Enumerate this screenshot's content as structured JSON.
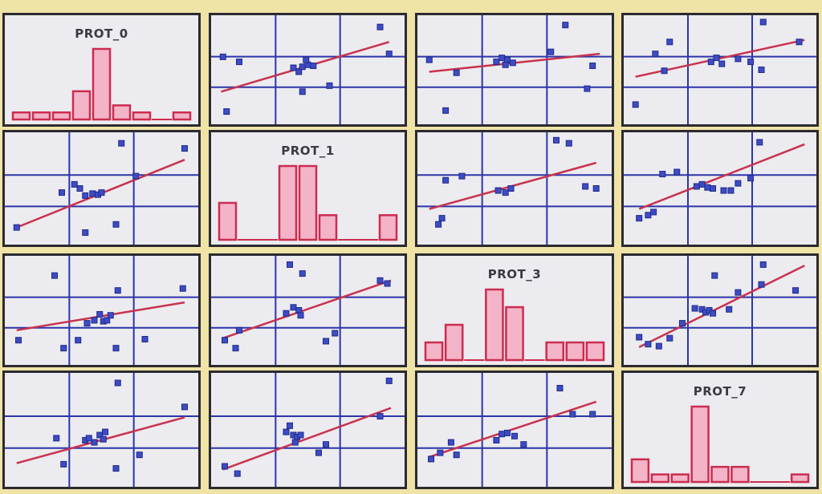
{
  "colors": {
    "background": "#efe3a6",
    "panel": "#ecebef",
    "border": "#2a2a30",
    "grid": "#2b35a8",
    "point": "#3d4cc4",
    "fit_line": "#c8324e",
    "bar_fill": "#f4b4c8",
    "bar_edge": "#cc2c50"
  },
  "chart_data": {
    "type": "scatter-matrix",
    "variables": [
      "PROT_0",
      "PROT_1",
      "PROT_3",
      "PROT_7"
    ],
    "diagonal_type": "histogram",
    "offdiagonal_type": "scatter-with-regression-line",
    "panels": [
      {
        "row": 0,
        "col": 0,
        "kind": "histogram",
        "title": "PROT_0",
        "counts": [
          1,
          1,
          1,
          4,
          10,
          2,
          1,
          0,
          1
        ]
      },
      {
        "row": 0,
        "col": 1,
        "kind": "scatter",
        "points": [
          [
            0.05,
            0.08
          ],
          [
            0.03,
            0.63
          ],
          [
            0.12,
            0.58
          ],
          [
            0.42,
            0.52
          ],
          [
            0.45,
            0.48
          ],
          [
            0.47,
            0.53
          ],
          [
            0.5,
            0.55
          ],
          [
            0.49,
            0.6
          ],
          [
            0.53,
            0.54
          ],
          [
            0.47,
            0.28
          ],
          [
            0.62,
            0.34
          ],
          [
            0.9,
            0.93
          ],
          [
            0.95,
            0.66
          ]
        ],
        "fit": [
          [
            0.02,
            0.28
          ],
          [
            0.95,
            0.78
          ]
        ]
      },
      {
        "row": 0,
        "col": 2,
        "kind": "scatter",
        "points": [
          [
            0.03,
            0.6
          ],
          [
            0.12,
            0.09
          ],
          [
            0.18,
            0.47
          ],
          [
            0.4,
            0.58
          ],
          [
            0.43,
            0.62
          ],
          [
            0.46,
            0.6
          ],
          [
            0.49,
            0.57
          ],
          [
            0.45,
            0.55
          ],
          [
            0.7,
            0.68
          ],
          [
            0.78,
            0.95
          ],
          [
            0.93,
            0.54
          ],
          [
            0.9,
            0.31
          ]
        ],
        "fit": [
          [
            0.03,
            0.48
          ],
          [
            0.97,
            0.66
          ]
        ]
      },
      {
        "row": 0,
        "col": 3,
        "kind": "scatter",
        "points": [
          [
            0.03,
            0.15
          ],
          [
            0.14,
            0.66
          ],
          [
            0.22,
            0.78
          ],
          [
            0.19,
            0.49
          ],
          [
            0.45,
            0.58
          ],
          [
            0.48,
            0.62
          ],
          [
            0.51,
            0.56
          ],
          [
            0.6,
            0.61
          ],
          [
            0.67,
            0.58
          ],
          [
            0.73,
            0.5
          ],
          [
            0.74,
            0.98
          ],
          [
            0.94,
            0.78
          ]
        ],
        "fit": [
          [
            0.03,
            0.43
          ],
          [
            0.97,
            0.8
          ]
        ]
      },
      {
        "row": 1,
        "col": 0,
        "kind": "scatter",
        "points": [
          [
            0.03,
            0.12
          ],
          [
            0.28,
            0.46
          ],
          [
            0.35,
            0.54
          ],
          [
            0.41,
            0.43
          ],
          [
            0.45,
            0.45
          ],
          [
            0.48,
            0.44
          ],
          [
            0.5,
            0.46
          ],
          [
            0.38,
            0.5
          ],
          [
            0.41,
            0.07
          ],
          [
            0.58,
            0.15
          ],
          [
            0.61,
            0.94
          ],
          [
            0.69,
            0.62
          ],
          [
            0.96,
            0.89
          ]
        ],
        "fit": [
          [
            0.03,
            0.12
          ],
          [
            0.96,
            0.78
          ]
        ]
      },
      {
        "row": 1,
        "col": 1,
        "kind": "histogram",
        "title": "PROT_1",
        "counts": [
          3,
          0,
          0,
          6,
          6,
          2,
          0,
          0,
          2
        ]
      },
      {
        "row": 1,
        "col": 2,
        "kind": "scatter",
        "points": [
          [
            0.08,
            0.15
          ],
          [
            0.1,
            0.21
          ],
          [
            0.12,
            0.58
          ],
          [
            0.21,
            0.62
          ],
          [
            0.41,
            0.48
          ],
          [
            0.45,
            0.46
          ],
          [
            0.48,
            0.5
          ],
          [
            0.73,
            0.97
          ],
          [
            0.8,
            0.94
          ],
          [
            0.89,
            0.52
          ],
          [
            0.95,
            0.5
          ]
        ],
        "fit": [
          [
            0.03,
            0.3
          ],
          [
            0.95,
            0.75
          ]
        ]
      },
      {
        "row": 1,
        "col": 3,
        "kind": "scatter",
        "points": [
          [
            0.05,
            0.21
          ],
          [
            0.1,
            0.24
          ],
          [
            0.13,
            0.27
          ],
          [
            0.18,
            0.64
          ],
          [
            0.26,
            0.66
          ],
          [
            0.37,
            0.52
          ],
          [
            0.4,
            0.54
          ],
          [
            0.43,
            0.51
          ],
          [
            0.46,
            0.5
          ],
          [
            0.52,
            0.48
          ],
          [
            0.56,
            0.48
          ],
          [
            0.6,
            0.55
          ],
          [
            0.67,
            0.6
          ],
          [
            0.72,
            0.95
          ]
        ],
        "fit": [
          [
            0.05,
            0.3
          ],
          [
            0.97,
            0.93
          ]
        ]
      },
      {
        "row": 2,
        "col": 0,
        "kind": "scatter",
        "points": [
          [
            0.04,
            0.2
          ],
          [
            0.24,
            0.85
          ],
          [
            0.29,
            0.12
          ],
          [
            0.37,
            0.2
          ],
          [
            0.42,
            0.37
          ],
          [
            0.46,
            0.4
          ],
          [
            0.49,
            0.46
          ],
          [
            0.51,
            0.39
          ],
          [
            0.53,
            0.4
          ],
          [
            0.55,
            0.45
          ],
          [
            0.59,
            0.7
          ],
          [
            0.58,
            0.12
          ],
          [
            0.74,
            0.21
          ],
          [
            0.95,
            0.72
          ]
        ],
        "fit": [
          [
            0.03,
            0.3
          ],
          [
            0.96,
            0.58
          ]
        ]
      },
      {
        "row": 2,
        "col": 1,
        "kind": "scatter",
        "points": [
          [
            0.04,
            0.2
          ],
          [
            0.1,
            0.12
          ],
          [
            0.12,
            0.3
          ],
          [
            0.38,
            0.47
          ],
          [
            0.42,
            0.53
          ],
          [
            0.45,
            0.5
          ],
          [
            0.46,
            0.45
          ],
          [
            0.4,
            0.96
          ],
          [
            0.47,
            0.87
          ],
          [
            0.6,
            0.19
          ],
          [
            0.65,
            0.27
          ],
          [
            0.9,
            0.8
          ],
          [
            0.94,
            0.77
          ]
        ],
        "fit": [
          [
            0.03,
            0.22
          ],
          [
            0.96,
            0.8
          ]
        ]
      },
      {
        "row": 2,
        "col": 2,
        "kind": "histogram",
        "title": "PROT_3",
        "counts": [
          1,
          2,
          0,
          4,
          3,
          0,
          1,
          1,
          1
        ]
      },
      {
        "row": 2,
        "col": 3,
        "kind": "scatter",
        "points": [
          [
            0.05,
            0.23
          ],
          [
            0.1,
            0.16
          ],
          [
            0.16,
            0.14
          ],
          [
            0.22,
            0.22
          ],
          [
            0.29,
            0.37
          ],
          [
            0.36,
            0.52
          ],
          [
            0.4,
            0.51
          ],
          [
            0.42,
            0.48
          ],
          [
            0.44,
            0.5
          ],
          [
            0.46,
            0.47
          ],
          [
            0.55,
            0.51
          ],
          [
            0.47,
            0.85
          ],
          [
            0.6,
            0.68
          ],
          [
            0.73,
            0.76
          ],
          [
            0.74,
            0.96
          ],
          [
            0.92,
            0.7
          ]
        ],
        "fit": [
          [
            0.05,
            0.13
          ],
          [
            0.97,
            0.95
          ]
        ]
      },
      {
        "row": 3,
        "col": 0,
        "kind": "scatter",
        "points": [
          [
            0.25,
            0.42
          ],
          [
            0.29,
            0.17
          ],
          [
            0.41,
            0.4
          ],
          [
            0.43,
            0.42
          ],
          [
            0.46,
            0.38
          ],
          [
            0.49,
            0.45
          ],
          [
            0.51,
            0.41
          ],
          [
            0.52,
            0.48
          ],
          [
            0.59,
            0.95
          ],
          [
            0.58,
            0.13
          ],
          [
            0.71,
            0.26
          ],
          [
            0.96,
            0.72
          ]
        ],
        "fit": [
          [
            0.03,
            0.18
          ],
          [
            0.96,
            0.62
          ]
        ]
      },
      {
        "row": 3,
        "col": 1,
        "kind": "scatter",
        "points": [
          [
            0.04,
            0.15
          ],
          [
            0.11,
            0.08
          ],
          [
            0.38,
            0.48
          ],
          [
            0.4,
            0.54
          ],
          [
            0.42,
            0.45
          ],
          [
            0.44,
            0.43
          ],
          [
            0.46,
            0.45
          ],
          [
            0.43,
            0.38
          ],
          [
            0.56,
            0.28
          ],
          [
            0.6,
            0.36
          ],
          [
            0.9,
            0.63
          ],
          [
            0.95,
            0.97
          ]
        ],
        "fit": [
          [
            0.03,
            0.12
          ],
          [
            0.96,
            0.71
          ]
        ]
      },
      {
        "row": 3,
        "col": 2,
        "kind": "scatter",
        "points": [
          [
            0.04,
            0.22
          ],
          [
            0.09,
            0.28
          ],
          [
            0.18,
            0.26
          ],
          [
            0.15,
            0.38
          ],
          [
            0.4,
            0.4
          ],
          [
            0.43,
            0.46
          ],
          [
            0.46,
            0.47
          ],
          [
            0.5,
            0.44
          ],
          [
            0.55,
            0.36
          ],
          [
            0.75,
            0.9
          ],
          [
            0.82,
            0.65
          ],
          [
            0.93,
            0.65
          ]
        ],
        "fit": [
          [
            0.03,
            0.24
          ],
          [
            0.95,
            0.77
          ]
        ]
      },
      {
        "row": 3,
        "col": 3,
        "kind": "histogram",
        "title": "PROT_7",
        "counts": [
          3,
          1,
          1,
          10,
          2,
          2,
          0,
          0,
          1
        ]
      }
    ]
  }
}
